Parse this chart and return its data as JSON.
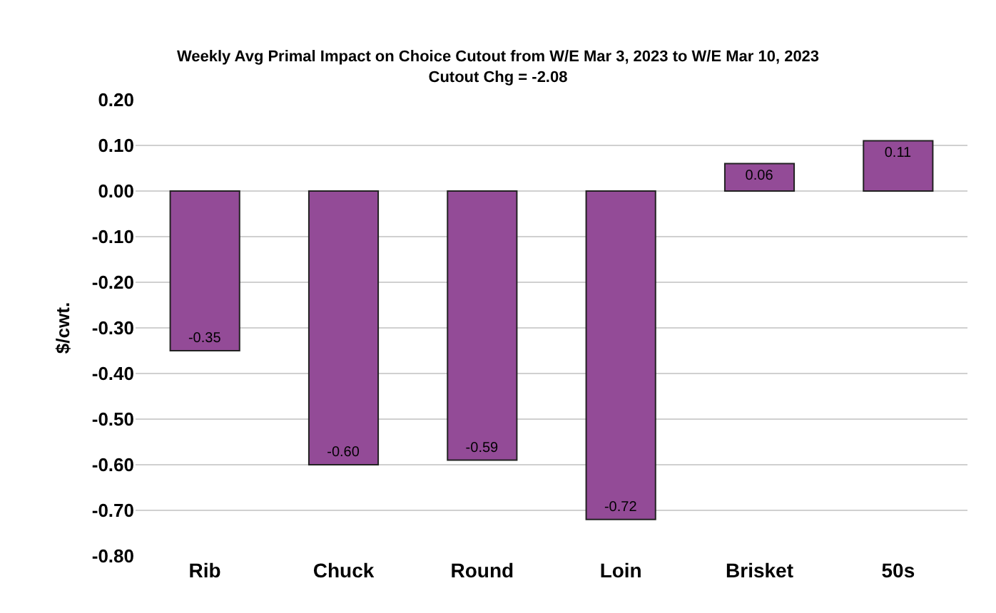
{
  "chart_data": {
    "type": "bar",
    "title": "Weekly Avg Primal Impact on Choice Cutout from W/E Mar 3, 2023 to W/E Mar 10, 2023",
    "subtitle": "Cutout Chg = -2.08",
    "ylabel": "$/cwt.",
    "categories": [
      "Rib",
      "Chuck",
      "Round",
      "Loin",
      "Brisket",
      "50s"
    ],
    "values": [
      -0.35,
      -0.6,
      -0.59,
      -0.72,
      0.06,
      0.11
    ],
    "value_labels": [
      "-0.35",
      "-0.60",
      "-0.59",
      "-0.72",
      "0.06",
      "0.11"
    ],
    "color": "#934b97",
    "ylim": [
      -0.8,
      0.2
    ],
    "yticks": [
      {
        "value": 0.2,
        "label": "0.20"
      },
      {
        "value": 0.1,
        "label": "0.10"
      },
      {
        "value": 0,
        "label": "0.00"
      },
      {
        "value": -0.1,
        "label": "-0.10"
      },
      {
        "value": -0.2,
        "label": "-0.20"
      },
      {
        "value": -0.3,
        "label": "-0.30"
      },
      {
        "value": -0.4,
        "label": "-0.40"
      },
      {
        "value": -0.5,
        "label": "-0.50"
      },
      {
        "value": -0.6,
        "label": "-0.60"
      },
      {
        "value": -0.7,
        "label": "-0.70"
      },
      {
        "value": -0.8,
        "label": "-0.80"
      }
    ],
    "grid": "y"
  }
}
